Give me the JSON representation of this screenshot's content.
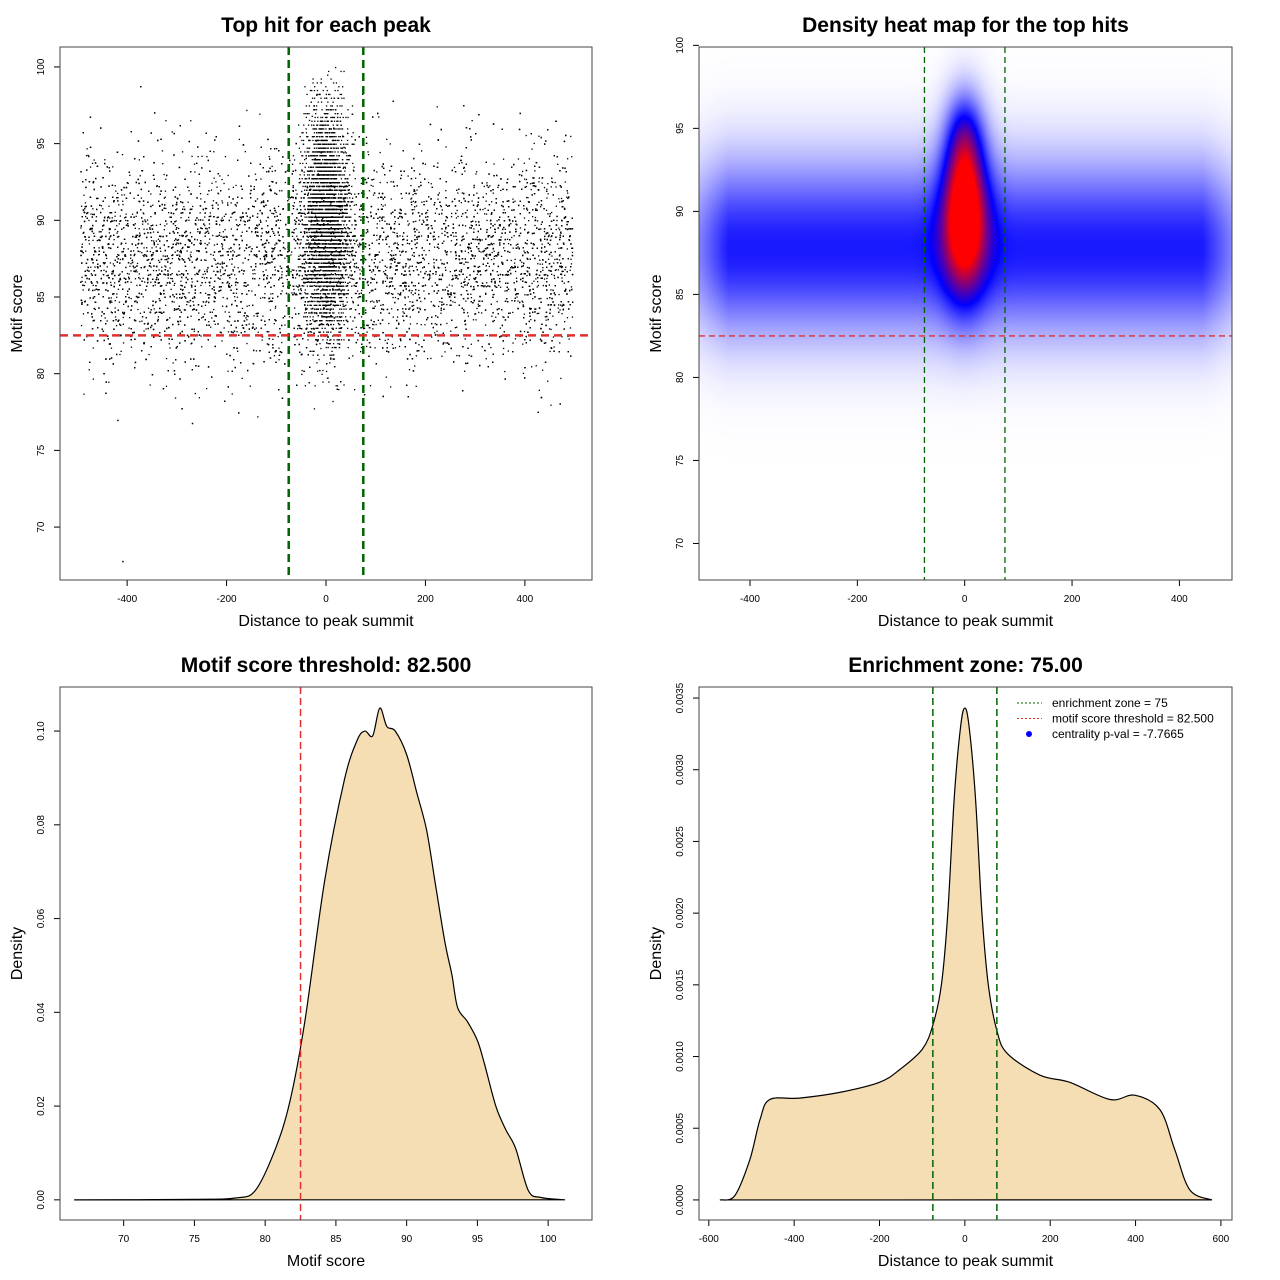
{
  "chart_data": [
    {
      "type": "scatter",
      "title": "Top hit for each peak",
      "xlabel": "Distance to peak summit",
      "ylabel": "Motif score",
      "xlim": [
        -535,
        535
      ],
      "ylim": [
        66.55,
        101.3
      ],
      "xticks": [
        -400,
        -200,
        0,
        200,
        400
      ],
      "yticks": [
        70,
        75,
        80,
        85,
        90,
        95,
        100
      ],
      "points_summary": {
        "background": {
          "n": 10000,
          "x_range": [
            -495,
            495
          ],
          "y_mean": 87.5,
          "y_sd": 3.4
        },
        "central": {
          "n": 3500,
          "x_mean": 0,
          "x_sd": 22,
          "y_mean": 90,
          "y_sd": 3.6
        },
        "outliers": [
          [
            -410,
            67.8
          ],
          [
            -270,
            76.8
          ],
          [
            -420,
            77.0
          ]
        ]
      },
      "vlines": [
        -75,
        75
      ],
      "hline": 82.5,
      "vline_color": "#006400",
      "hline_color": "#e03030"
    },
    {
      "type": "heatmap",
      "title": "Density heat map for the top hits",
      "xlabel": "Distance to peak summit",
      "ylabel": "Motif score",
      "xlim": [
        -495,
        498
      ],
      "ylim": [
        67.8,
        99.9
      ],
      "xticks": [
        -400,
        -200,
        0,
        200,
        400
      ],
      "yticks": [
        70,
        75,
        80,
        85,
        90,
        95,
        100
      ],
      "colormap": [
        "#ffffff",
        "#0000ff",
        "#ff0000"
      ],
      "components": [
        {
          "x_mean": 0,
          "x_sd": 10000,
          "x_range": [
            -495,
            498
          ],
          "y_mean": 87.8,
          "y_sd": 3.6,
          "weight": 0.45
        },
        {
          "x_mean": 0,
          "x_sd": 28,
          "y_mean": 90.2,
          "y_sd": 3.4,
          "weight": 0.95
        },
        {
          "x_mean": 0,
          "x_sd": 22,
          "y_mean": 94.5,
          "y_sd": 1.8,
          "weight": 0.25
        }
      ],
      "vlines": [
        -75,
        75
      ],
      "hline": 82.5
    },
    {
      "type": "area",
      "title": "Motif score threshold: 82.500",
      "xlabel": "Motif score",
      "ylabel": "Density",
      "xlim": [
        65.5,
        103.1
      ],
      "ylim": [
        -0.0043,
        0.1094
      ],
      "xticks": [
        70,
        75,
        80,
        85,
        90,
        95,
        100
      ],
      "yticks": [
        "0.00",
        "0.02",
        "0.04",
        "0.06",
        "0.08",
        "0.10"
      ],
      "x": [
        66.5,
        75,
        77.9,
        79.3,
        80.7,
        81.75,
        82.8,
        84.2,
        85.6,
        86.5,
        87.05,
        87.6,
        88.1,
        88.6,
        89.2,
        90.0,
        90.7,
        91.4,
        92.0,
        92.7,
        93.2,
        93.6,
        94.3,
        95.0,
        95.5,
        96.3,
        97.0,
        97.7,
        98.6,
        99.5,
        101.2
      ],
      "y": [
        0,
        0.0001,
        0.0004,
        0.002,
        0.0107,
        0.021,
        0.038,
        0.068,
        0.0896,
        0.098,
        0.1,
        0.099,
        0.1049,
        0.101,
        0.1,
        0.095,
        0.087,
        0.079,
        0.068,
        0.055,
        0.048,
        0.041,
        0.038,
        0.034,
        0.029,
        0.02,
        0.015,
        0.011,
        0.002,
        0.0005,
        0
      ],
      "fill": "#f5deb3",
      "vline": 82.5,
      "vline_color": "#e03030"
    },
    {
      "type": "area",
      "title": "Enrichment zone: 75.00",
      "xlabel": "Distance to peak summit",
      "ylabel": "Density",
      "xlim": [
        -623,
        626
      ],
      "ylim": [
        -0.00014,
        0.003577
      ],
      "xticks": [
        -600,
        -400,
        -200,
        0,
        200,
        400,
        600
      ],
      "yticks": [
        "0.0000",
        "0.0005",
        "0.0010",
        "0.0015",
        "0.0020",
        "0.0025",
        "0.0030",
        "0.0035"
      ],
      "x": [
        -574,
        -539,
        -504,
        -480,
        -457,
        -387,
        -293,
        -200,
        -152,
        -100,
        -75,
        -55,
        -40,
        -25,
        -10,
        0,
        10,
        25,
        40,
        55,
        75,
        100,
        176,
        246,
        340,
        398,
        457,
        492,
        527,
        579
      ],
      "y": [
        0,
        3e-05,
        0.00028,
        0.00056,
        0.0007,
        0.00071,
        0.00075,
        0.00082,
        0.00091,
        0.00105,
        0.00122,
        0.0015,
        0.002,
        0.0028,
        0.0033,
        0.00343,
        0.0033,
        0.0028,
        0.002,
        0.0015,
        0.00118,
        0.00102,
        0.00087,
        0.00082,
        0.0007,
        0.00073,
        0.00063,
        0.00035,
        7e-05,
        0
      ],
      "fill": "#f5deb3",
      "vlines": [
        -75,
        75
      ],
      "legend": {
        "position": "top-right",
        "entries": [
          {
            "label": "enrichment zone = 75",
            "color": "#006400",
            "style": "dotted-line"
          },
          {
            "label": "motif score threshold = 82.500",
            "color": "#e03030",
            "style": "dotted-line"
          },
          {
            "label": "centrality p-val = -7.7665",
            "color": "#0000ff",
            "style": "point"
          }
        ]
      }
    }
  ]
}
